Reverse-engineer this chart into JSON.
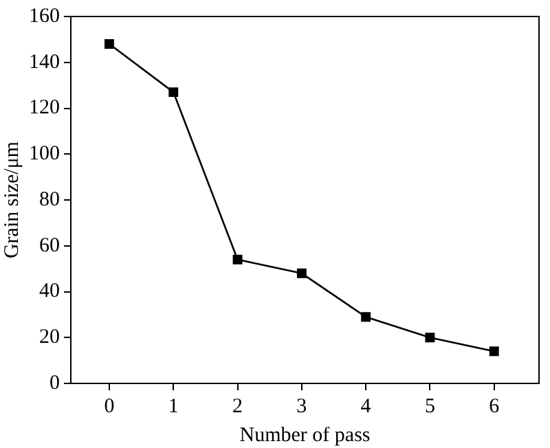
{
  "chart_data": {
    "type": "line",
    "xlabel": "Number of pass",
    "ylabel": "Grain size/μm",
    "x": [
      0,
      1,
      2,
      3,
      4,
      5,
      6
    ],
    "series": [
      {
        "color": "#000000",
        "values": [
          148,
          127,
          54,
          48,
          29,
          20,
          14
        ]
      }
    ],
    "xlim": [
      -0.6,
      6.7
    ],
    "xticks": [
      0,
      1,
      2,
      3,
      4,
      5,
      6
    ],
    "ylim": [
      0,
      160
    ],
    "yticks": [
      0,
      20,
      40,
      60,
      80,
      100,
      120,
      140,
      160
    ],
    "grid": false,
    "legend": false,
    "marker": "square",
    "line_style": "solid"
  }
}
